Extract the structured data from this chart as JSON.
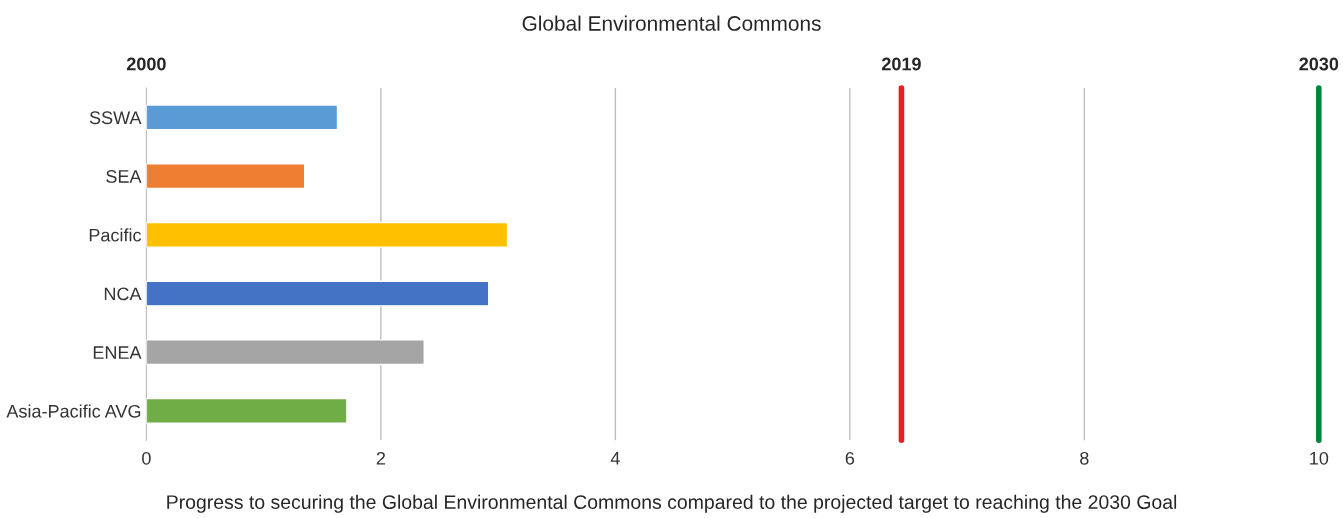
{
  "chart_data": {
    "type": "bar",
    "orientation": "horizontal",
    "title": "Global Environmental Commons",
    "categories": [
      "SSWA",
      "SEA",
      "Pacific",
      "NCA",
      "ENEA",
      "Asia-Pacific AVG"
    ],
    "values": [
      1.63,
      1.35,
      3.08,
      2.92,
      2.37,
      1.71
    ],
    "colors": [
      "#5b9bd5",
      "#ed7d31",
      "#ffc000",
      "#4472c4",
      "#a5a5a5",
      "#70ad47"
    ],
    "xlim": [
      0,
      10
    ],
    "xticks": [
      0,
      2,
      4,
      6,
      8,
      10
    ],
    "ref_lines": [
      {
        "axis": "x",
        "value": 6.44,
        "color": "#ed1c24"
      },
      {
        "axis": "x",
        "value": 10,
        "color": "#00843d"
      }
    ],
    "grid": "x",
    "legend": false,
    "annotations": [
      "2000",
      "2019",
      "2030",
      "Progress to securing the Global Environmental Commons compared to the projected target to reaching the 2030 Goal"
    ]
  }
}
